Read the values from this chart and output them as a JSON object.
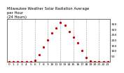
{
  "title": "Milwaukee Weather Solar Radiation Average\nper Hour\n(24 Hours)",
  "x": [
    0,
    1,
    2,
    3,
    4,
    5,
    6,
    7,
    8,
    9,
    10,
    11,
    12,
    13,
    14,
    15,
    16,
    17,
    18,
    19,
    20,
    21,
    22,
    23
  ],
  "y": [
    0,
    0,
    0,
    0,
    0,
    2,
    12,
    65,
    135,
    205,
    265,
    315,
    365,
    340,
    280,
    230,
    175,
    105,
    38,
    4,
    0,
    0,
    0,
    0
  ],
  "dot_color": "#cc0000",
  "bg_color": "#ffffff",
  "grid_color": "#999999",
  "ylim": [
    0,
    400
  ],
  "ytick_values": [
    50,
    100,
    150,
    200,
    250,
    300,
    350
  ],
  "xtick_values": [
    0,
    1,
    2,
    3,
    4,
    5,
    6,
    7,
    8,
    9,
    10,
    11,
    12,
    13,
    14,
    15,
    16,
    17,
    18,
    19,
    20,
    21,
    22,
    23
  ],
  "vgrid_positions": [
    3,
    6,
    9,
    12,
    15,
    18,
    21
  ],
  "marker_size": 1.8,
  "title_fontsize": 3.8,
  "tick_fontsize": 3.2
}
